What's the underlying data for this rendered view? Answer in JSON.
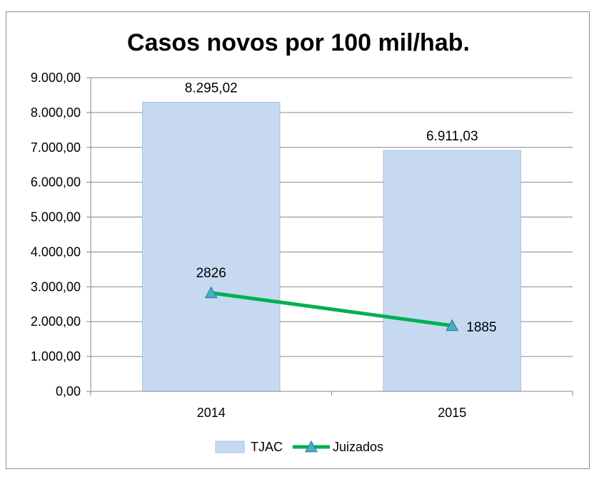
{
  "chart_data": {
    "type": "bar",
    "title": "Casos novos por 100 mil/hab.",
    "categories": [
      "2014",
      "2015"
    ],
    "series": [
      {
        "name": "TJAC",
        "type": "bar",
        "values": [
          8295.02,
          6911.03
        ],
        "labels": [
          "8.295,02",
          "6.911,03"
        ],
        "color": "#c6d9f1"
      },
      {
        "name": "Juizados",
        "type": "line",
        "values": [
          2826,
          1885
        ],
        "labels": [
          "2826",
          "1885"
        ],
        "color": "#00b050",
        "marker": "triangle",
        "marker_color": "#4bacc6"
      }
    ],
    "ylim": [
      0,
      9000
    ],
    "yticks": [
      0,
      1000,
      2000,
      3000,
      4000,
      5000,
      6000,
      7000,
      8000,
      9000
    ],
    "ytick_labels": [
      "0,00",
      "1.000,00",
      "2.000,00",
      "3.000,00",
      "4.000,00",
      "5.000,00",
      "6.000,00",
      "7.000,00",
      "8.000,00",
      "9.000,00"
    ],
    "grid": true,
    "legend": "bottom"
  }
}
